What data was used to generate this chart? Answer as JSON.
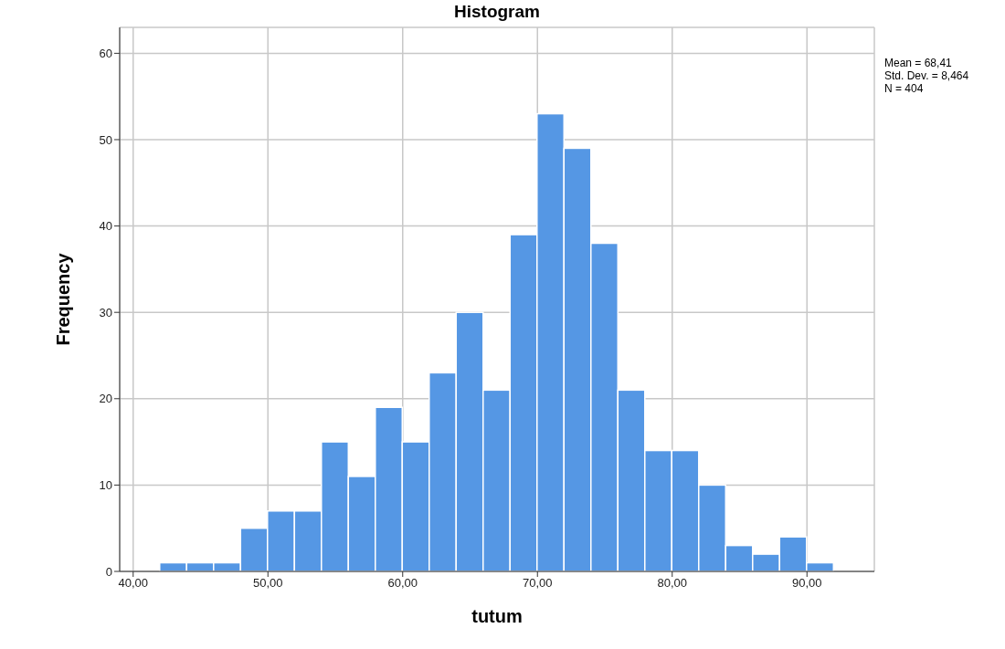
{
  "chart_data": {
    "type": "histogram",
    "title": "Histogram",
    "xlabel": "tutum",
    "ylabel": "Frequency",
    "bins": [
      42,
      44,
      46,
      48,
      50,
      52,
      54,
      56,
      58,
      60,
      62,
      64,
      66,
      68,
      70,
      72,
      74,
      76,
      78,
      80,
      82,
      84,
      86,
      88,
      90,
      92
    ],
    "values": [
      1,
      1,
      1,
      5,
      7,
      7,
      15,
      11,
      19,
      15,
      23,
      30,
      21,
      39,
      53,
      49,
      38,
      21,
      14,
      14,
      10,
      3,
      2,
      4,
      1
    ],
    "color": "#5597e4",
    "xlim": [
      39,
      95
    ],
    "xticks": [
      {
        "value": 40,
        "label": "40,00"
      },
      {
        "value": 50,
        "label": "50,00"
      },
      {
        "value": 60,
        "label": "60,00"
      },
      {
        "value": 70,
        "label": "70,00"
      },
      {
        "value": 80,
        "label": "80,00"
      },
      {
        "value": 90,
        "label": "90,00"
      }
    ],
    "ylim": [
      0,
      63
    ],
    "yticks": [
      0,
      10,
      20,
      30,
      40,
      50,
      60
    ],
    "grid": true,
    "annotations": [
      "Mean = 68,41",
      "Std. Dev. = 8,464",
      "N = 404"
    ]
  }
}
